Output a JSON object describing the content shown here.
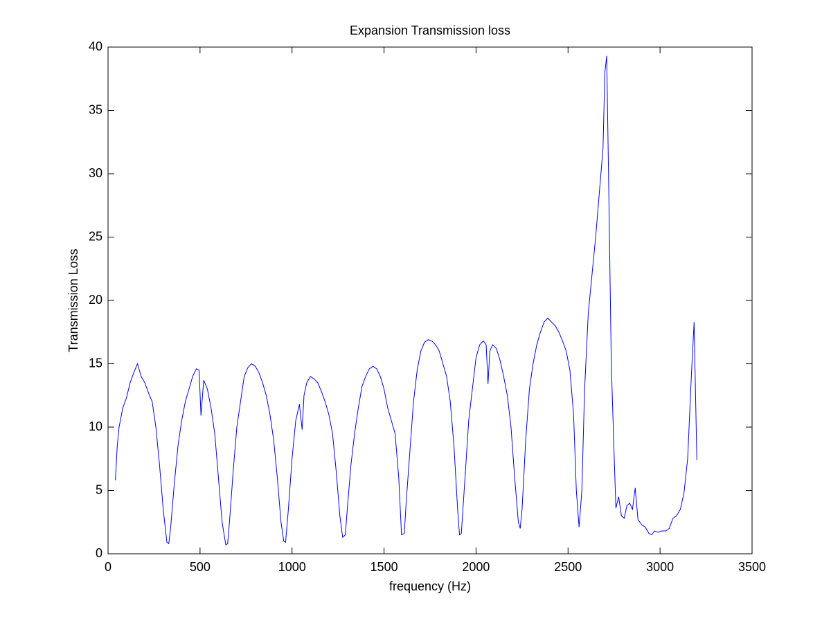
{
  "chart_data": {
    "type": "line",
    "title": "Expansion Transmission loss",
    "x_label": "frequency (Hz)",
    "y_label": "Transmission Loss",
    "color": "#0000ff",
    "xlim": [
      0,
      3500
    ],
    "xticks": [
      0,
      500,
      1000,
      1500,
      2000,
      2500,
      3000,
      3500
    ],
    "ylim": [
      0,
      40
    ],
    "yticks": [
      0,
      5,
      10,
      15,
      20,
      25,
      30,
      35,
      40
    ],
    "grid": false,
    "x": [
      40,
      50,
      60,
      80,
      100,
      120,
      140,
      160,
      180,
      200,
      220,
      240,
      260,
      280,
      300,
      320,
      330,
      340,
      360,
      380,
      400,
      420,
      440,
      460,
      480,
      495,
      505,
      520,
      540,
      560,
      580,
      600,
      620,
      640,
      650,
      660,
      680,
      700,
      720,
      740,
      760,
      780,
      800,
      820,
      840,
      860,
      880,
      900,
      920,
      940,
      955,
      965,
      980,
      1000,
      1020,
      1040,
      1055,
      1065,
      1080,
      1100,
      1120,
      1140,
      1160,
      1180,
      1200,
      1220,
      1240,
      1260,
      1275,
      1290,
      1300,
      1320,
      1340,
      1360,
      1380,
      1400,
      1420,
      1440,
      1460,
      1480,
      1500,
      1520,
      1540,
      1560,
      1580,
      1595,
      1610,
      1620,
      1640,
      1660,
      1680,
      1700,
      1720,
      1740,
      1760,
      1780,
      1800,
      1820,
      1840,
      1860,
      1880,
      1900,
      1910,
      1920,
      1940,
      1960,
      1980,
      2000,
      2020,
      2040,
      2055,
      2065,
      2075,
      2090,
      2110,
      2130,
      2150,
      2170,
      2190,
      2210,
      2230,
      2240,
      2250,
      2270,
      2290,
      2310,
      2330,
      2350,
      2370,
      2390,
      2410,
      2430,
      2450,
      2470,
      2490,
      2510,
      2530,
      2545,
      2560,
      2575,
      2590,
      2610,
      2630,
      2650,
      2670,
      2690,
      2700,
      2710,
      2720,
      2735,
      2750,
      2760,
      2775,
      2790,
      2805,
      2820,
      2835,
      2850,
      2865,
      2880,
      2900,
      2920,
      2940,
      2955,
      2970,
      2990,
      3010,
      3030,
      3050,
      3070,
      3090,
      3110,
      3130,
      3150,
      3170,
      3185,
      3195,
      3200
    ],
    "values": [
      5.8,
      8.5,
      10,
      11.5,
      12.3,
      13.5,
      14.3,
      15,
      14,
      13.5,
      12.7,
      12,
      10,
      7,
      3.5,
      0.9,
      0.8,
      2,
      5.5,
      8.5,
      10.5,
      12,
      13,
      14,
      14.6,
      14.5,
      10.9,
      13.7,
      13,
      11.5,
      9.5,
      6,
      2.5,
      0.7,
      0.8,
      2.5,
      6.5,
      10,
      12,
      14,
      14.7,
      15,
      14.8,
      14.3,
      13.5,
      12.5,
      11,
      9,
      6,
      2.5,
      1,
      0.9,
      3.5,
      7.5,
      10.5,
      11.8,
      9.8,
      12.5,
      13.5,
      14,
      13.8,
      13.5,
      12.8,
      12,
      11,
      9.5,
      6.5,
      3,
      1.3,
      1.5,
      3.5,
      7,
      9.5,
      11.5,
      13.2,
      14,
      14.6,
      14.8,
      14.6,
      14,
      13,
      11.5,
      10.5,
      9.5,
      6,
      1.5,
      1.6,
      4,
      8,
      12,
      14.5,
      16,
      16.7,
      16.9,
      16.8,
      16.5,
      16,
      15,
      14,
      12,
      8.5,
      3.5,
      1.5,
      1.6,
      6,
      10.5,
      13,
      15.5,
      16.5,
      16.8,
      16.5,
      13.4,
      16,
      16.5,
      16.2,
      15.3,
      14,
      12.5,
      10,
      6,
      2.5,
      2,
      3.5,
      9,
      13,
      15,
      16.5,
      17.5,
      18.3,
      18.6,
      18.3,
      18,
      17.5,
      16.8,
      16,
      14.5,
      11,
      5,
      2.1,
      5,
      13,
      19,
      22,
      25,
      28.5,
      32,
      38,
      39.3,
      30,
      15,
      8,
      3.6,
      4.5,
      3,
      2.8,
      3.8,
      4,
      3.5,
      5.2,
      2.7,
      2.3,
      2.1,
      1.6,
      1.5,
      1.8,
      1.7,
      1.8,
      1.8,
      2,
      2.8,
      3,
      3.5,
      4.8,
      7.5,
      14,
      18.3,
      11,
      7.4
    ]
  }
}
